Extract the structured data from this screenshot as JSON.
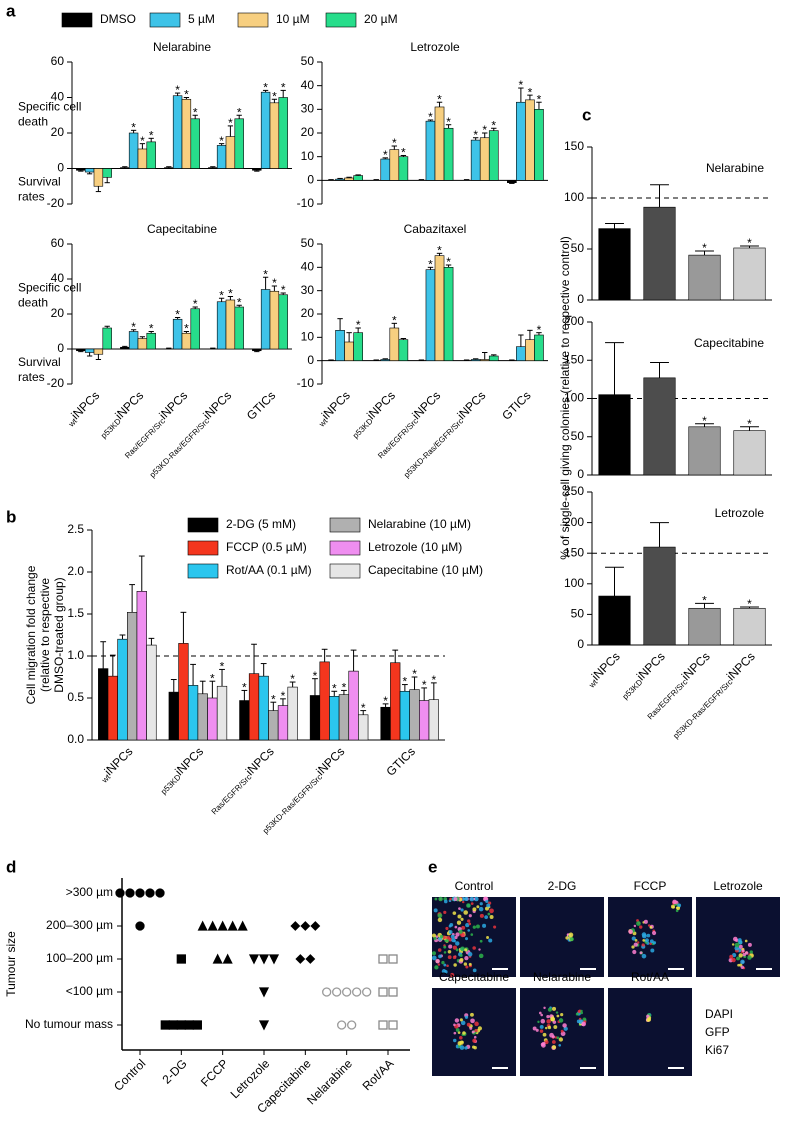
{
  "panel_labels": [
    "a",
    "b",
    "c",
    "d",
    "e"
  ],
  "chart_data": [
    {
      "type": "bar",
      "title": "Nelarabine",
      "ylabel_upper": [
        "Specific cell",
        "death"
      ],
      "ylabel_lower": [
        "Survival",
        "rates"
      ],
      "ylim": [
        -20,
        60
      ],
      "yticks": [
        -20,
        0,
        20,
        40,
        60
      ],
      "significance_label": "*",
      "series": [
        {
          "name": "DMSO",
          "color": "#000000",
          "values": [
            -1,
            0.5,
            0.5,
            0.5,
            -1
          ],
          "errors": [
            0.5,
            0.5,
            0.5,
            0.5,
            0.5
          ]
        },
        {
          "name": "5 µM",
          "color": "#3ec3e8",
          "values": [
            -2,
            20,
            41,
            13,
            43
          ],
          "errors": [
            1,
            1.5,
            1.5,
            1,
            1
          ],
          "significant": [
            false,
            true,
            true,
            true,
            true
          ]
        },
        {
          "name": "10 µM",
          "color": "#f7cf80",
          "values": [
            -10,
            11,
            39,
            18,
            37
          ],
          "errors": [
            3,
            3,
            1,
            6,
            2
          ],
          "significant": [
            false,
            true,
            true,
            true,
            true
          ]
        },
        {
          "name": "20 µM",
          "color": "#27dd8b",
          "values": [
            -5,
            15,
            28,
            28,
            40
          ],
          "errors": [
            3,
            2,
            2,
            2,
            4
          ],
          "significant": [
            false,
            true,
            true,
            true,
            true
          ]
        }
      ]
    },
    {
      "type": "bar",
      "title": "Letrozole",
      "ylim": [
        -10,
        50
      ],
      "yticks": [
        -10,
        0,
        10,
        20,
        30,
        40,
        50
      ],
      "significance_label": "*",
      "series": [
        {
          "color": "#000000",
          "values": [
            0,
            0,
            0,
            0,
            -1
          ],
          "errors": [
            0.3,
            0.3,
            0.3,
            0.3,
            0.3
          ]
        },
        {
          "color": "#3ec3e8",
          "values": [
            0.5,
            9,
            25,
            17,
            33
          ],
          "errors": [
            0.3,
            0.5,
            0.5,
            1,
            6
          ],
          "significant": [
            false,
            true,
            true,
            true,
            true
          ]
        },
        {
          "color": "#f7cf80",
          "values": [
            1,
            13,
            31,
            18,
            34
          ],
          "errors": [
            0.3,
            1.5,
            2,
            2,
            2
          ],
          "significant": [
            false,
            true,
            true,
            true,
            true
          ]
        },
        {
          "color": "#27dd8b",
          "values": [
            2,
            10,
            22,
            21,
            30
          ],
          "errors": [
            0.3,
            0.5,
            1.5,
            1,
            3
          ],
          "significant": [
            false,
            true,
            true,
            true,
            true
          ]
        }
      ]
    },
    {
      "type": "bar",
      "title": "Capecitabine",
      "ylabel_upper": [
        "Specific cell",
        "death"
      ],
      "ylabel_lower": [
        "Survival",
        "rates"
      ],
      "categories": [
        "iNPCs",
        "iNPCs",
        "iNPCs",
        "iNPCs",
        "GTICs"
      ],
      "category_prefixes": [
        "wt",
        "p53KD",
        "Ras/EGFR/Src",
        "p53KD-Ras/EGFR/Src",
        null
      ],
      "ylim": [
        -20,
        60
      ],
      "yticks": [
        -20,
        0,
        20,
        40,
        60
      ],
      "significance_label": "*",
      "series": [
        {
          "color": "#000000",
          "values": [
            -1,
            1,
            0,
            0,
            -1
          ],
          "errors": [
            0.5,
            0.5,
            0.5,
            0.5,
            0.5
          ]
        },
        {
          "color": "#3ec3e8",
          "values": [
            -2,
            10,
            17,
            27,
            34
          ],
          "errors": [
            2,
            1,
            1,
            2,
            7
          ],
          "significant": [
            false,
            true,
            true,
            true,
            true
          ]
        },
        {
          "color": "#f7cf80",
          "values": [
            -3,
            6,
            9,
            28,
            33
          ],
          "errors": [
            3,
            1,
            1,
            2,
            3
          ],
          "significant": [
            false,
            false,
            true,
            true,
            true
          ]
        },
        {
          "color": "#27dd8b",
          "values": [
            12,
            9,
            23,
            24,
            31
          ],
          "errors": [
            1,
            1,
            1,
            1,
            1
          ],
          "significant": [
            false,
            true,
            true,
            true,
            true
          ]
        }
      ]
    },
    {
      "type": "bar",
      "title": "Cabazitaxel",
      "categories": [
        "iNPCs",
        "iNPCs",
        "iNPCs",
        "iNPCs",
        "GTICs"
      ],
      "category_prefixes": [
        "wt",
        "p53KD",
        "Ras/EGFR/Src",
        "p53KD-Ras/EGFR/Src",
        null
      ],
      "ylim": [
        -10,
        50
      ],
      "yticks": [
        -10,
        0,
        10,
        20,
        30,
        40,
        50
      ],
      "significance_label": "*",
      "series": [
        {
          "color": "#000000",
          "values": [
            0,
            0,
            0,
            0,
            0
          ],
          "errors": [
            0.3,
            0.3,
            0.3,
            0.3,
            0.3
          ]
        },
        {
          "color": "#3ec3e8",
          "values": [
            13,
            0.5,
            39,
            0.5,
            6
          ],
          "errors": [
            5,
            0.3,
            1,
            0.3,
            5
          ],
          "significant": [
            false,
            false,
            true,
            false,
            false
          ]
        },
        {
          "color": "#f7cf80",
          "values": [
            8,
            14,
            45,
            0.5,
            9
          ],
          "errors": [
            4,
            2,
            1,
            3,
            4
          ],
          "significant": [
            false,
            true,
            true,
            false,
            false
          ]
        },
        {
          "color": "#27dd8b",
          "values": [
            12,
            9,
            40,
            2,
            11
          ],
          "errors": [
            2,
            0.5,
            1,
            0.5,
            1
          ],
          "significant": [
            true,
            false,
            true,
            false,
            true
          ]
        }
      ]
    },
    {
      "type": "bar",
      "ylabel": [
        "Cell migration fold change",
        "(relative to respective",
        "DMSO-treated group)"
      ],
      "categories": [
        "iNPCs",
        "iNPCs",
        "iNPCs",
        "iNPCs",
        "GTICs"
      ],
      "category_prefixes": [
        "wt",
        "p53KD",
        "Ras/EGFR/Src",
        "p53KD-Ras/EGFR/Src",
        null
      ],
      "ylim": [
        0,
        2.5
      ],
      "yticks": [
        {
          "value": 0,
          "label": "0.0"
        },
        {
          "value": 0.5,
          "label": "0.5"
        },
        {
          "value": 1,
          "label": "1.0"
        },
        {
          "value": 1.5,
          "label": "1.5"
        },
        {
          "value": 2,
          "label": "2.0"
        },
        {
          "value": 2.5,
          "label": "2.5"
        }
      ],
      "reference_line": 1,
      "significance_label": "*",
      "series": [
        {
          "name": "2-DG (5 mM)",
          "color": "#000000",
          "values": [
            0.85,
            0.57,
            0.47,
            0.53,
            0.39
          ],
          "errors": [
            0.32,
            0.15,
            0.12,
            0.2,
            0.04
          ],
          "significant": [
            false,
            false,
            true,
            true,
            true
          ]
        },
        {
          "name": "FCCP (0.5 µM)",
          "color": "#f4361e",
          "values": [
            0.76,
            1.15,
            0.79,
            0.93,
            0.92
          ],
          "errors": [
            0.25,
            0.37,
            0.35,
            0.15,
            0.15
          ],
          "significant": [
            false,
            false,
            false,
            false,
            false
          ]
        },
        {
          "name": "Rot/AA (0.1 µM)",
          "color": "#2bc6ee",
          "values": [
            1.2,
            0.65,
            0.76,
            0.52,
            0.58
          ],
          "errors": [
            0.05,
            0.25,
            0.15,
            0.06,
            0.08
          ],
          "significant": [
            false,
            false,
            false,
            true,
            true
          ]
        },
        {
          "name": "Nelarabine (10 µM)",
          "color": "#b0b0b0",
          "values": [
            1.52,
            0.55,
            0.35,
            0.54,
            0.6
          ],
          "errors": [
            0.33,
            0.15,
            0.1,
            0.05,
            0.15
          ],
          "significant": [
            false,
            false,
            true,
            true,
            true
          ]
        },
        {
          "name": "Letrozole (10 µM)",
          "color": "#ef8ef0",
          "values": [
            1.77,
            0.5,
            0.41,
            0.82,
            0.47
          ],
          "errors": [
            0.42,
            0.2,
            0.08,
            0.25,
            0.15
          ],
          "significant": [
            false,
            true,
            true,
            false,
            true
          ]
        },
        {
          "name": "Capecitabine (10 µM)",
          "color": "#e6e6e6",
          "values": [
            1.13,
            0.64,
            0.63,
            0.3,
            0.48
          ],
          "errors": [
            0.08,
            0.2,
            0.06,
            0.05,
            0.2
          ],
          "significant": [
            false,
            true,
            true,
            true,
            true
          ]
        }
      ]
    },
    {
      "type": "bar",
      "title": "Nelarabine",
      "ylabel": "% of single-cell giving colonies (relative to respective control)",
      "ylim": [
        0,
        150
      ],
      "yticks": [
        0,
        50,
        100,
        150
      ],
      "reference_line": 100,
      "significance_label": "*",
      "values": [
        70,
        91,
        44,
        51
      ],
      "errors": [
        5,
        22,
        4,
        2
      ],
      "colors": [
        "#000000",
        "#4d4d4d",
        "#999999",
        "#cfcfcf"
      ],
      "significant": [
        false,
        false,
        true,
        true
      ]
    },
    {
      "type": "bar",
      "title": "Capecitabine",
      "ylim": [
        0,
        200
      ],
      "yticks": [
        0,
        50,
        100,
        150,
        200
      ],
      "reference_line": 100,
      "significance_label": "*",
      "values": [
        105,
        127,
        63,
        58
      ],
      "errors": [
        68,
        20,
        4,
        5
      ],
      "colors": [
        "#000000",
        "#4d4d4d",
        "#999999",
        "#cfcfcf"
      ],
      "significant": [
        false,
        false,
        true,
        true
      ]
    },
    {
      "type": "bar",
      "title": "Letrozole",
      "categories": [
        "iNPCs",
        "iNPCs",
        "iNPCs",
        "iNPCs"
      ],
      "category_prefixes": [
        "wt",
        "p53KD",
        "Ras/EGFR/Src",
        "p53KD-Ras/EGFR/Src"
      ],
      "ylim": [
        0,
        250
      ],
      "yticks": [
        0,
        50,
        100,
        150,
        200,
        250
      ],
      "reference_line": 150,
      "significance_label": "*",
      "values": [
        80,
        160,
        60,
        60
      ],
      "errors": [
        47,
        40,
        8,
        2
      ],
      "colors": [
        "#000000",
        "#4d4d4d",
        "#999999",
        "#cfcfcf"
      ],
      "significant": [
        false,
        false,
        true,
        true
      ]
    },
    {
      "type": "dot",
      "ylabel": "Tumour size",
      "x_categories": [
        "Control",
        "2-DG",
        "FCCP",
        "Letrozole",
        "Capecitabine",
        "Nelarabine",
        "Rot/AA"
      ],
      "y_categories": [
        ">300 µm",
        "200–300 µm",
        "100–200 µm",
        "<100 µm",
        "No tumour mass"
      ],
      "counts": [
        [
          5,
          1,
          0,
          0,
          0
        ],
        [
          0,
          0,
          1,
          0,
          5
        ],
        [
          0,
          5,
          2,
          0,
          0
        ],
        [
          0,
          0,
          3,
          1,
          1
        ],
        [
          0,
          3,
          2,
          0,
          0
        ],
        [
          0,
          0,
          0,
          5,
          2
        ],
        [
          0,
          0,
          2,
          2,
          2
        ]
      ],
      "markers": [
        "circle",
        "square",
        "triangle",
        "triangle-down",
        "diamond",
        "open-circle",
        "open-square"
      ],
      "colors": [
        "#000000",
        "#000000",
        "#000000",
        "#000000",
        "#000000",
        "#999999",
        "#888888"
      ]
    }
  ],
  "micrographs": {
    "labels": [
      "Control",
      "2-DG",
      "FCCP",
      "Letrozole",
      "Capecitabine",
      "Nelarabine",
      "Rot/AA"
    ],
    "legend": [
      {
        "text": "DAPI",
        "color": "#2aa7e0"
      },
      {
        "text": "GFP",
        "color": "#2db34a"
      },
      {
        "text": "Ki67",
        "color": "#e8323c"
      }
    ]
  }
}
